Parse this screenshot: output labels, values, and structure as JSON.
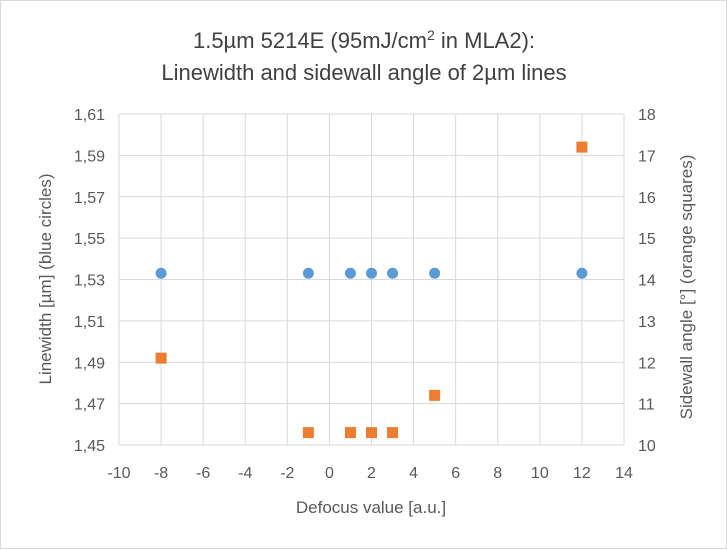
{
  "chart_data": {
    "type": "scatter",
    "title_line1_pre": "1.5µm 5214E (95mJ/cm",
    "title_line1_sup": "2",
    "title_line1_post": " in MLA2):",
    "title_line2": "Linewidth and sidewall angle of 2µm lines",
    "xlabel": "Defocus value [a.u.]",
    "ylabel_left": "Linewidth [µm] (blue circles)",
    "ylabel_right": "Sidewall angle [°] (orange squares)",
    "xlim": [
      -10,
      14
    ],
    "x_ticks": [
      -10,
      -8,
      -6,
      -4,
      -2,
      0,
      2,
      4,
      6,
      8,
      10,
      12,
      14
    ],
    "ylim_left": [
      1.45,
      1.61
    ],
    "y_left_ticks": [
      "1,45",
      "1,47",
      "1,49",
      "1,51",
      "1,53",
      "1,55",
      "1,57",
      "1,59",
      "1,61"
    ],
    "ylim_right": [
      10,
      18
    ],
    "y_right_ticks": [
      "10",
      "11",
      "12",
      "13",
      "14",
      "15",
      "16",
      "17",
      "18"
    ],
    "grid": true,
    "series": [
      {
        "axis": "left",
        "marker": "circle",
        "color": "#5b9bd5",
        "x": [
          -8,
          -1,
          1,
          2,
          3,
          5,
          12
        ],
        "y": [
          1.533,
          1.533,
          1.533,
          1.533,
          1.533,
          1.533,
          1.533
        ]
      },
      {
        "axis": "right",
        "marker": "square",
        "color": "#ed7d31",
        "x": [
          -8,
          -1,
          1,
          2,
          3,
          5,
          12
        ],
        "y": [
          12.1,
          10.3,
          10.3,
          10.3,
          10.3,
          11.2,
          17.2
        ]
      }
    ]
  }
}
